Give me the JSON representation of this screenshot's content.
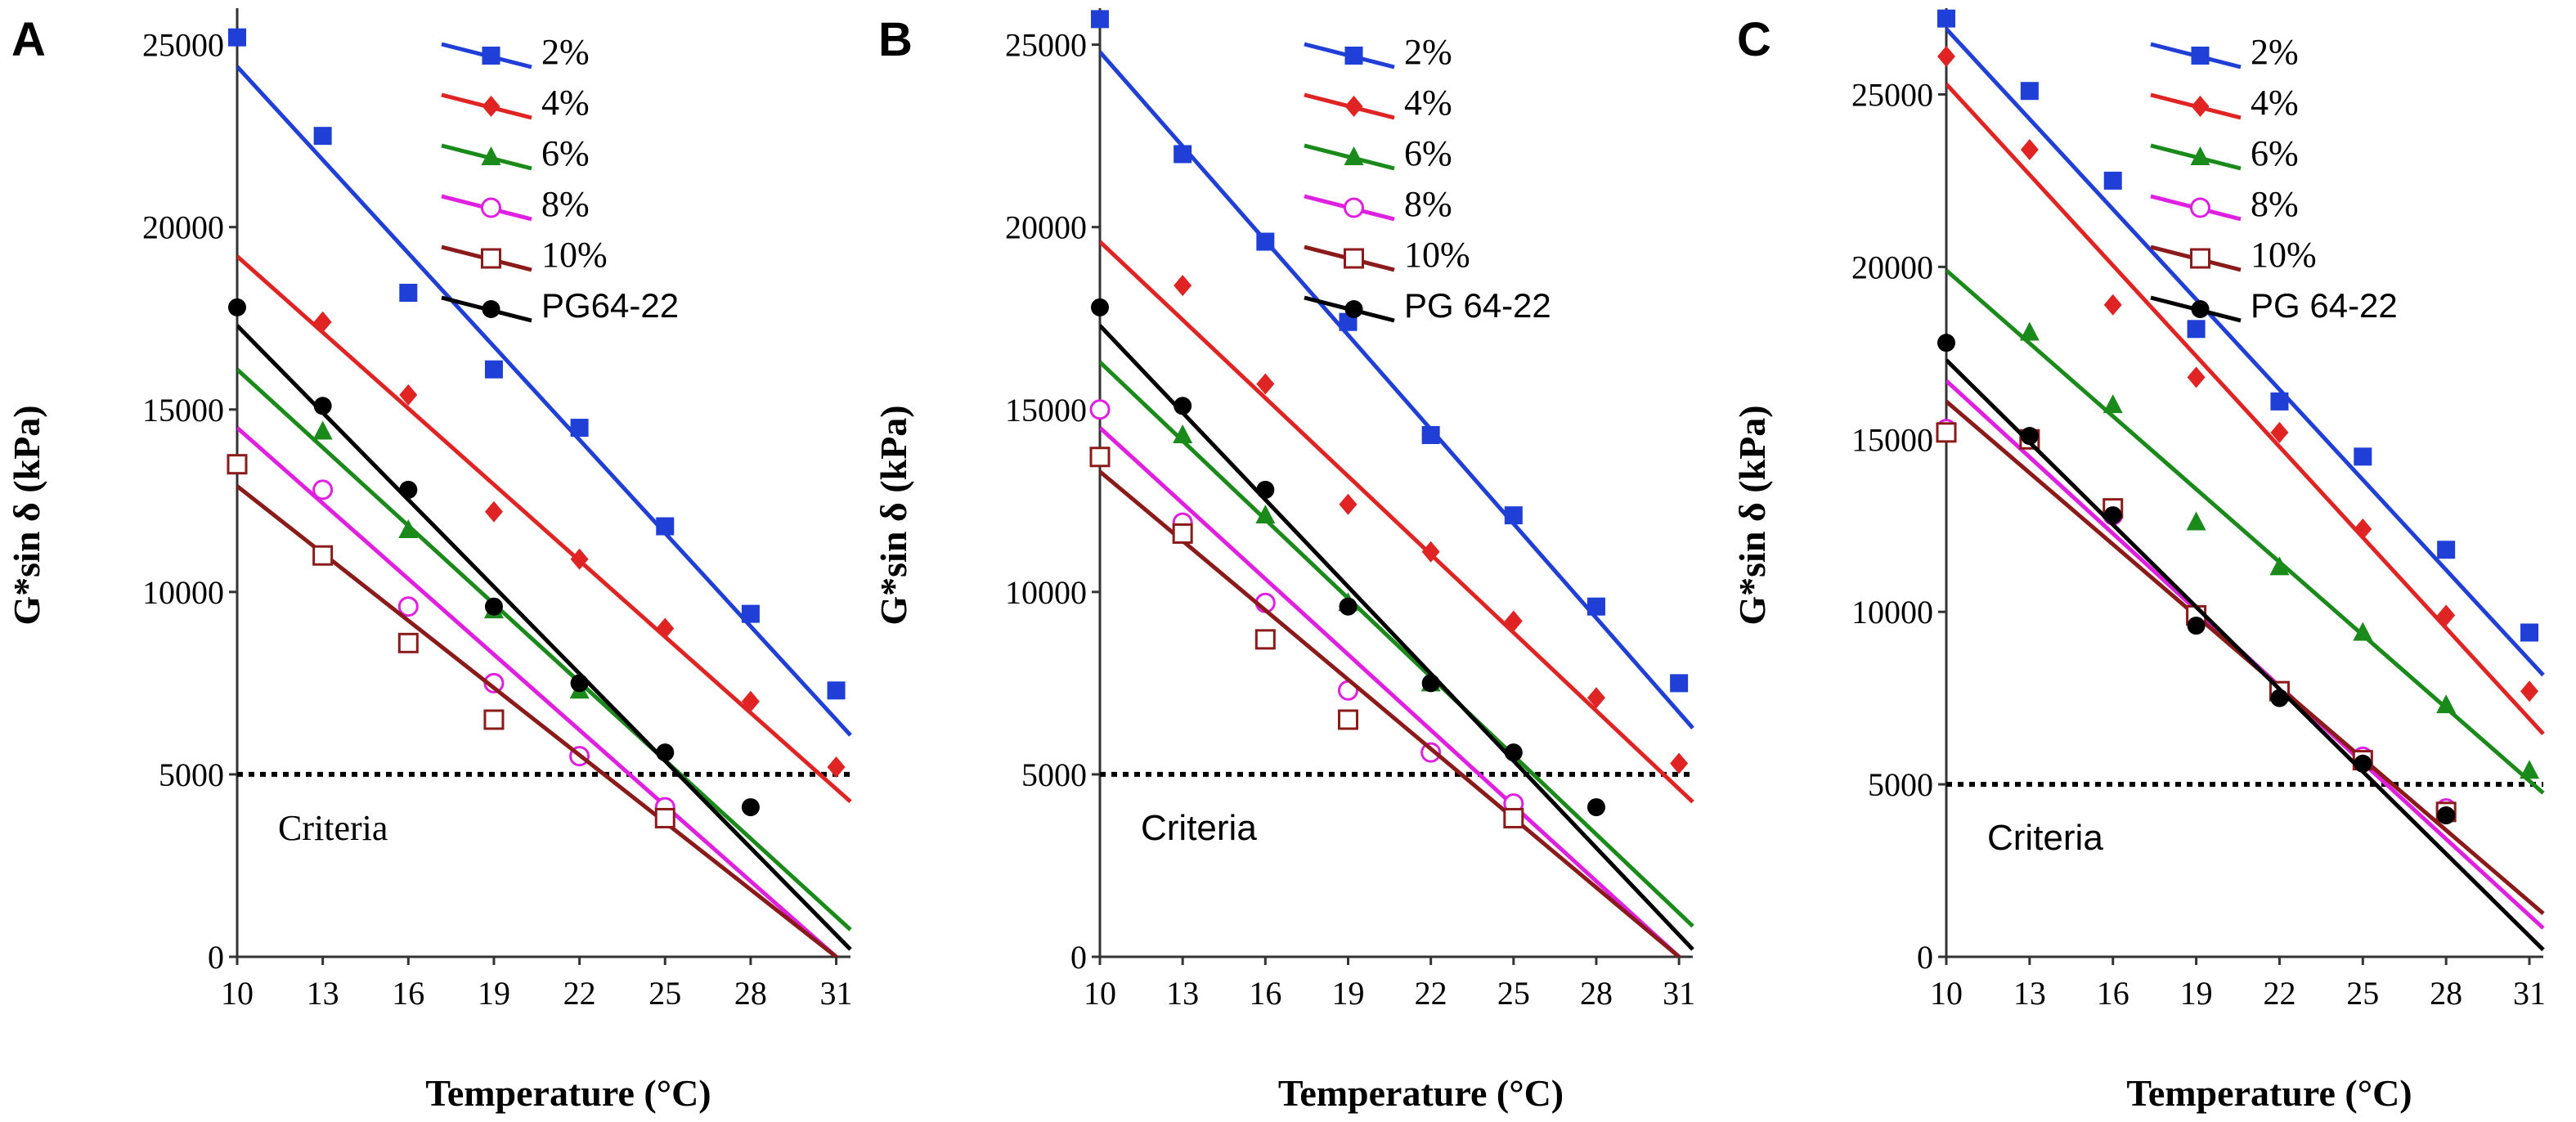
{
  "figure": {
    "panels": [
      {
        "letter": "A",
        "chart_data": {
          "type": "scatter",
          "title": "",
          "xlabel": "Temperature (°C)",
          "ylabel": "G*sin δ (kPa)",
          "x_ticks": [
            10,
            13,
            16,
            19,
            22,
            25,
            28,
            31
          ],
          "y_ticks": [
            0,
            5000,
            10000,
            15000,
            20000,
            25000
          ],
          "xlim": [
            10,
            31.5
          ],
          "ylim": [
            0,
            26000
          ],
          "criteria": {
            "value": 5000,
            "label": "Criteria"
          },
          "legend_position": "top-right",
          "series": [
            {
              "name": "2%",
              "color": "#1f3fd6",
              "marker": "square",
              "x": [
                10,
                13,
                16,
                19,
                22,
                25,
                28,
                31
              ],
              "values": [
                25200,
                22500,
                18200,
                16100,
                14500,
                11800,
                9400,
                7300
              ],
              "fit": [
                24400,
                6500
              ]
            },
            {
              "name": "4%",
              "color": "#e02424",
              "marker": "diamond",
              "x": [
                13,
                16,
                19,
                22,
                25,
                28,
                31
              ],
              "values": [
                17400,
                15400,
                12200,
                10900,
                9000,
                7000,
                5200
              ],
              "fit": [
                19200,
                4600
              ]
            },
            {
              "name": "6%",
              "color": "#1a8a1a",
              "marker": "triangle",
              "x": [
                13,
                16,
                19,
                22
              ],
              "values": [
                14400,
                11700,
                9500,
                7300
              ],
              "fit": [
                16100,
                1100
              ]
            },
            {
              "name": "8%",
              "color": "#e020e0",
              "marker": "open-circle",
              "x": [
                13,
                16,
                19,
                22,
                25
              ],
              "values": [
                12800,
                9600,
                7500,
                5500,
                4100
              ],
              "fit": [
                14500,
                0
              ]
            },
            {
              "name": "10%",
              "color": "#8b1a1a",
              "marker": "open-square",
              "x": [
                10,
                13,
                16,
                19,
                25
              ],
              "values": [
                13500,
                11000,
                8600,
                6500,
                3800
              ],
              "fit": [
                12900,
                0
              ]
            },
            {
              "name": "PG64-22",
              "color": "#000000",
              "marker": "circle",
              "x": [
                10,
                13,
                16,
                19,
                22,
                25,
                28
              ],
              "values": [
                17800,
                15100,
                12800,
                9600,
                7500,
                5600,
                4100
              ],
              "fit": [
                17300,
                600
              ]
            }
          ]
        }
      },
      {
        "letter": "B",
        "chart_data": {
          "type": "scatter",
          "title": "",
          "xlabel": "Temperature (°C)",
          "ylabel": "G*sin δ (kPa)",
          "x_ticks": [
            10,
            13,
            16,
            19,
            22,
            25,
            28,
            31
          ],
          "y_ticks": [
            0,
            5000,
            10000,
            15000,
            20000,
            25000
          ],
          "xlim": [
            10,
            31.5
          ],
          "ylim": [
            0,
            26000
          ],
          "criteria": {
            "value": 5000,
            "label": "Criteria"
          },
          "legend_position": "top-right",
          "series": [
            {
              "name": "2%",
              "color": "#1f3fd6",
              "marker": "square",
              "x": [
                10,
                13,
                16,
                19,
                22,
                25,
                28,
                31
              ],
              "values": [
                25700,
                22000,
                19600,
                17400,
                14300,
                12100,
                9600,
                7500
              ],
              "fit": [
                24800,
                6700
              ]
            },
            {
              "name": "4%",
              "color": "#e02424",
              "marker": "diamond",
              "x": [
                13,
                16,
                19,
                22,
                25,
                28,
                31
              ],
              "values": [
                18400,
                15700,
                12400,
                11100,
                9200,
                7100,
                5300
              ],
              "fit": [
                19600,
                4600
              ]
            },
            {
              "name": "6%",
              "color": "#1a8a1a",
              "marker": "triangle",
              "x": [
                13,
                16,
                19,
                22
              ],
              "values": [
                14300,
                12100,
                9700,
                7500
              ],
              "fit": [
                16300,
                1200
              ]
            },
            {
              "name": "8%",
              "color": "#e020e0",
              "marker": "open-circle",
              "x": [
                10,
                13,
                16,
                19,
                22,
                25
              ],
              "values": [
                15000,
                11900,
                9700,
                7300,
                5600,
                4200
              ],
              "fit": [
                14500,
                0
              ]
            },
            {
              "name": "10%",
              "color": "#8b1a1a",
              "marker": "open-square",
              "x": [
                10,
                13,
                16,
                19,
                25
              ],
              "values": [
                13700,
                11600,
                8700,
                6500,
                3800
              ],
              "fit": [
                13300,
                0
              ]
            },
            {
              "name": "PG 64-22",
              "color": "#000000",
              "marker": "circle",
              "x": [
                10,
                13,
                16,
                19,
                22,
                25,
                28
              ],
              "values": [
                17800,
                15100,
                12800,
                9600,
                7500,
                5600,
                4100
              ],
              "fit": [
                17300,
                600
              ]
            }
          ]
        }
      },
      {
        "letter": "C",
        "chart_data": {
          "type": "scatter",
          "title": "",
          "xlabel": "Temperature (°C)",
          "ylabel": "G*sin δ (kPa)",
          "x_ticks": [
            10,
            13,
            16,
            19,
            22,
            25,
            28,
            31
          ],
          "y_ticks": [
            0,
            5000,
            10000,
            15000,
            20000,
            25000
          ],
          "xlim": [
            10,
            31.5
          ],
          "ylim": [
            0,
            27500
          ],
          "criteria": {
            "value": 5000,
            "label": "Criteria"
          },
          "legend_position": "top-right",
          "series": [
            {
              "name": "2%",
              "color": "#1f3fd6",
              "marker": "square",
              "x": [
                10,
                13,
                16,
                19,
                22,
                25,
                28,
                31
              ],
              "values": [
                27200,
                25100,
                22500,
                18200,
                16100,
                14500,
                11800,
                9400
              ],
              "fit": [
                26900,
                8600
              ]
            },
            {
              "name": "4%",
              "color": "#e02424",
              "marker": "diamond",
              "x": [
                10,
                13,
                16,
                19,
                22,
                25,
                28,
                31
              ],
              "values": [
                26100,
                23400,
                18900,
                16800,
                15200,
                12400,
                9900,
                7700
              ],
              "fit": [
                25300,
                6900
              ]
            },
            {
              "name": "6%",
              "color": "#1a8a1a",
              "marker": "triangle",
              "x": [
                13,
                16,
                19,
                22,
                25,
                28,
                31
              ],
              "values": [
                18100,
                16000,
                12600,
                11300,
                9400,
                7300,
                5400
              ],
              "fit": [
                19900,
                5100
              ]
            },
            {
              "name": "8%",
              "color": "#e020e0",
              "marker": "open-circle",
              "x": [
                10,
                13,
                16,
                19,
                22,
                25,
                28
              ],
              "values": [
                15300,
                15000,
                12800,
                9900,
                7700,
                5800,
                4300
              ],
              "fit": [
                16700,
                1200
              ]
            },
            {
              "name": "10%",
              "color": "#8b1a1a",
              "marker": "open-square",
              "x": [
                10,
                13,
                16,
                19,
                22,
                25,
                28
              ],
              "values": [
                15200,
                15000,
                13000,
                9900,
                7700,
                5700,
                4200
              ],
              "fit": [
                16100,
                1600
              ]
            },
            {
              "name": "PG 64-22",
              "color": "#000000",
              "marker": "circle",
              "x": [
                10,
                13,
                16,
                19,
                22,
                25,
                28
              ],
              "values": [
                17800,
                15100,
                12800,
                9600,
                7500,
                5600,
                4100
              ],
              "fit": [
                17300,
                600
              ]
            }
          ]
        }
      }
    ]
  }
}
